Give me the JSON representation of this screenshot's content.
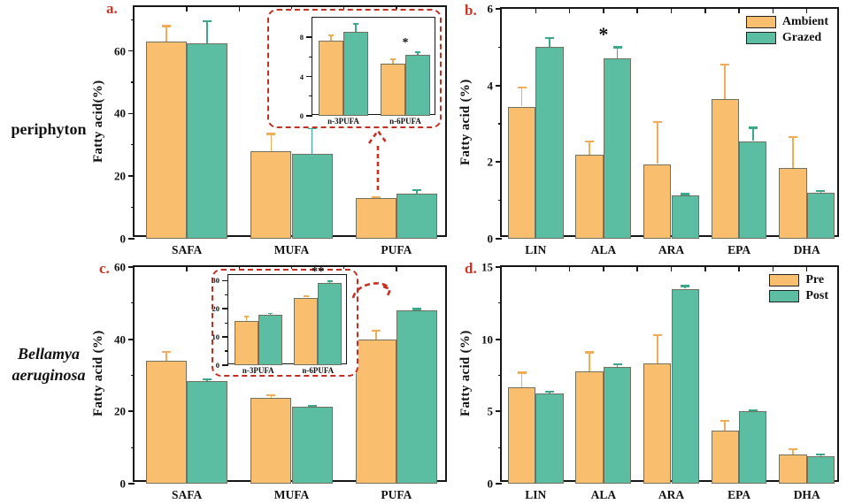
{
  "figure": {
    "row_labels": [
      {
        "text": "periphyton",
        "italic": false
      },
      {
        "text": "Bellamya aeruginosa",
        "italic": true
      }
    ],
    "colors": {
      "ambient_pre_fill": "#F9BE6E",
      "grazed_post_fill": "#5BBDA2",
      "bar_edge": "#72705e",
      "panel_letter_red": "#cf3322",
      "callout_dash_red": "#c52f22",
      "axis_black": "#161616"
    }
  },
  "chart_data": [
    {
      "id": "a",
      "type": "bar",
      "panel_label": "a.",
      "ylabel": "Fatty acid(%)",
      "ylim": [
        0,
        74
      ],
      "yticks": [
        0,
        20,
        40,
        60
      ],
      "grid": false,
      "categories": [
        "SAFA",
        "MUFA",
        "PUFA"
      ],
      "series": [
        {
          "name": "Ambient",
          "color": "#F9BE6E",
          "error_color": "#F2AC58",
          "values": [
            63,
            28,
            13
          ],
          "errors": [
            5,
            5.5,
            0.4
          ]
        },
        {
          "name": "Grazed",
          "color": "#5BBDA2",
          "error_color": "#3BA88C",
          "values": [
            62.5,
            27,
            14.5
          ],
          "errors": [
            7,
            8.5,
            1
          ]
        }
      ],
      "markers": [],
      "legend": null,
      "inset": {
        "type": "bar",
        "ylim": [
          0,
          10
        ],
        "yticks": [
          0,
          4,
          8
        ],
        "categories": [
          "n-3PUFA",
          "n-6PUFA"
        ],
        "series": [
          {
            "name": "Ambient",
            "color": "#F9BE6E",
            "error_color": "#F2AC58",
            "values": [
              7.7,
              5.3
            ],
            "errors": [
              0.5,
              0.5
            ]
          },
          {
            "name": "Grazed",
            "color": "#5BBDA2",
            "error_color": "#3BA88C",
            "values": [
              8.6,
              6.2
            ],
            "errors": [
              0.8,
              0.3
            ]
          }
        ],
        "markers": [
          {
            "category": 1,
            "symbol": "*"
          }
        ]
      }
    },
    {
      "id": "b",
      "type": "bar",
      "panel_label": "b.",
      "ylabel": "Fatty acid (%)",
      "ylim": [
        0,
        6
      ],
      "yticks": [
        0,
        2,
        4,
        6
      ],
      "grid": false,
      "categories": [
        "LIN",
        "ALA",
        "ARA",
        "EPA",
        "DHA"
      ],
      "series": [
        {
          "name": "Ambient",
          "color": "#F9BE6E",
          "error_color": "#F2AC58",
          "values": [
            3.45,
            2.2,
            1.95,
            3.65,
            1.85
          ],
          "errors": [
            0.5,
            0.35,
            1.1,
            0.9,
            0.8
          ]
        },
        {
          "name": "Grazed",
          "color": "#5BBDA2",
          "error_color": "#3BA88C",
          "values": [
            5.0,
            4.7,
            1.12,
            2.55,
            1.2
          ],
          "errors": [
            0.25,
            0.3,
            0.05,
            0.35,
            0.05
          ]
        }
      ],
      "markers": [
        {
          "category": 1,
          "symbol": "*"
        }
      ],
      "legend": {
        "position": "top-right",
        "entries": [
          "Ambient",
          "Grazed"
        ]
      },
      "inset": null
    },
    {
      "id": "c",
      "type": "bar",
      "panel_label": "c.",
      "ylabel": "Fatty acid (%)",
      "ylim": [
        0,
        60
      ],
      "yticks": [
        0,
        20,
        40,
        60
      ],
      "grid": false,
      "categories": [
        "SAFA",
        "MUFA",
        "PUFA"
      ],
      "series": [
        {
          "name": "Pre",
          "color": "#F9BE6E",
          "error_color": "#F2AC58",
          "values": [
            34,
            23.8,
            40
          ],
          "errors": [
            2.5,
            0.8,
            2.5
          ]
        },
        {
          "name": "Post",
          "color": "#5BBDA2",
          "error_color": "#3BA88C",
          "values": [
            28.5,
            21.2,
            48
          ],
          "errors": [
            0.4,
            0.3,
            0.4
          ]
        }
      ],
      "markers": [],
      "legend": null,
      "inset": {
        "type": "bar",
        "ylim": [
          0,
          32
        ],
        "yticks": [
          0,
          10,
          20,
          30
        ],
        "categories": [
          "n-3PUFA",
          "n-6PUFA"
        ],
        "series": [
          {
            "name": "Pre",
            "color": "#F9BE6E",
            "error_color": "#F2AC58",
            "values": [
              15.8,
              24
            ],
            "errors": [
              1.5,
              0.6
            ]
          },
          {
            "name": "Post",
            "color": "#5BBDA2",
            "error_color": "#3BA88C",
            "values": [
              18,
              29.3
            ],
            "errors": [
              0.4,
              0.5
            ]
          }
        ],
        "markers": [
          {
            "category": 1,
            "symbol": "**"
          }
        ]
      }
    },
    {
      "id": "d",
      "type": "bar",
      "panel_label": "d.",
      "ylabel": "Fatty acid (%)",
      "ylim": [
        0,
        15
      ],
      "yticks": [
        0,
        5,
        10,
        15
      ],
      "grid": false,
      "categories": [
        "LIN",
        "ALA",
        "ARA",
        "EPA",
        "DHA"
      ],
      "series": [
        {
          "name": "Pre",
          "color": "#F9BE6E",
          "error_color": "#F2AC58",
          "values": [
            6.7,
            7.8,
            8.3,
            3.7,
            2.0
          ],
          "errors": [
            1.0,
            1.3,
            2.0,
            0.65,
            0.4
          ]
        },
        {
          "name": "Post",
          "color": "#5BBDA2",
          "error_color": "#3BA88C",
          "values": [
            6.25,
            8.1,
            13.5,
            5.0,
            1.9
          ],
          "errors": [
            0.15,
            0.2,
            0.2,
            0.1,
            0.15
          ]
        }
      ],
      "markers": [],
      "legend": {
        "position": "top-right",
        "entries": [
          "Pre",
          "Post"
        ]
      },
      "inset": null
    }
  ]
}
